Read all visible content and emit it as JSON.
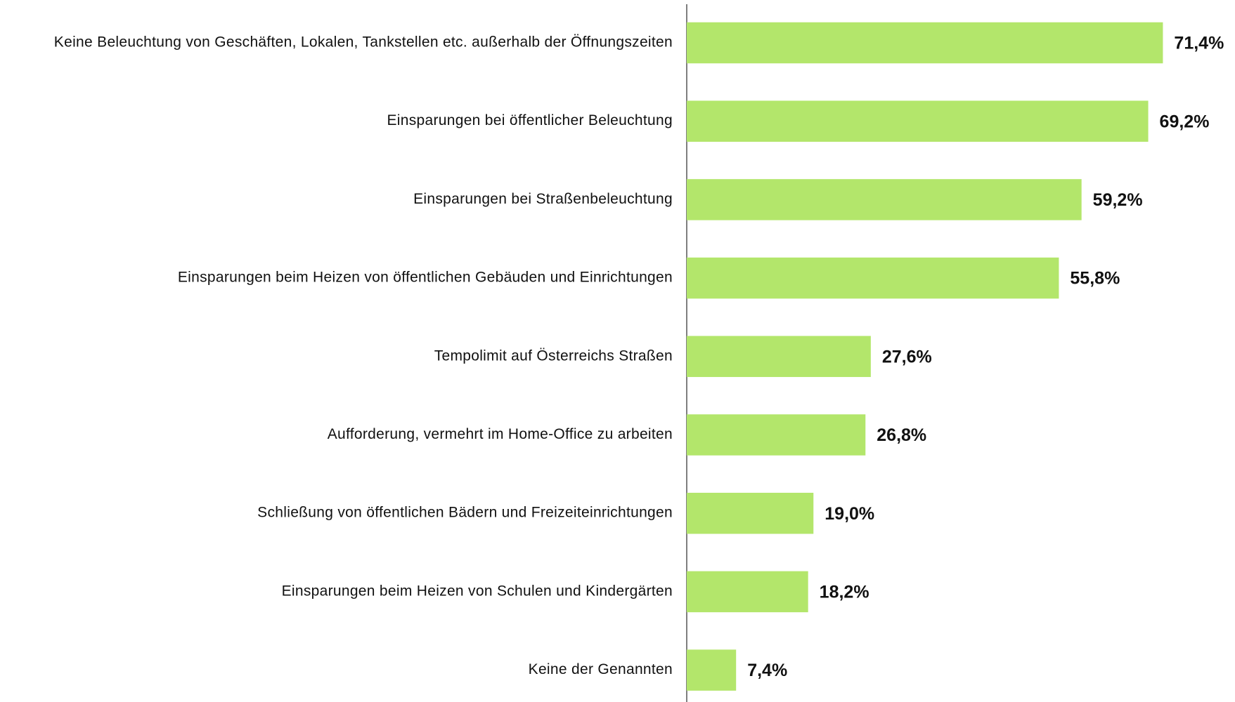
{
  "chart_data": {
    "type": "bar",
    "orientation": "horizontal",
    "categories": [
      "Keine Beleuchtung von Geschäften, Lokalen, Tankstellen etc. außerhalb der Öffnungszeiten",
      "Einsparungen bei öffentlicher Beleuchtung",
      "Einsparungen bei Straßenbeleuchtung",
      "Einsparungen beim Heizen von öffentlichen Gebäuden und Einrichtungen",
      "Tempolimit auf Österreichs Straßen",
      "Aufforderung, vermehrt im Home-Office zu arbeiten",
      "Schließung von öffentlichen Bädern und Freizeiteinrichtungen",
      "Einsparungen beim Heizen von Schulen und Kindergärten",
      "Keine der Genannten"
    ],
    "values": [
      71.4,
      69.2,
      59.2,
      55.8,
      27.6,
      26.8,
      19.0,
      18.2,
      7.4
    ],
    "value_labels": [
      "71,4%",
      "69,2%",
      "59,2%",
      "55,8%",
      "27,6%",
      "26,8%",
      "19,0%",
      "18,2%",
      "7,4%"
    ],
    "color": "#b3e66b",
    "xlim": [
      0,
      82
    ]
  }
}
